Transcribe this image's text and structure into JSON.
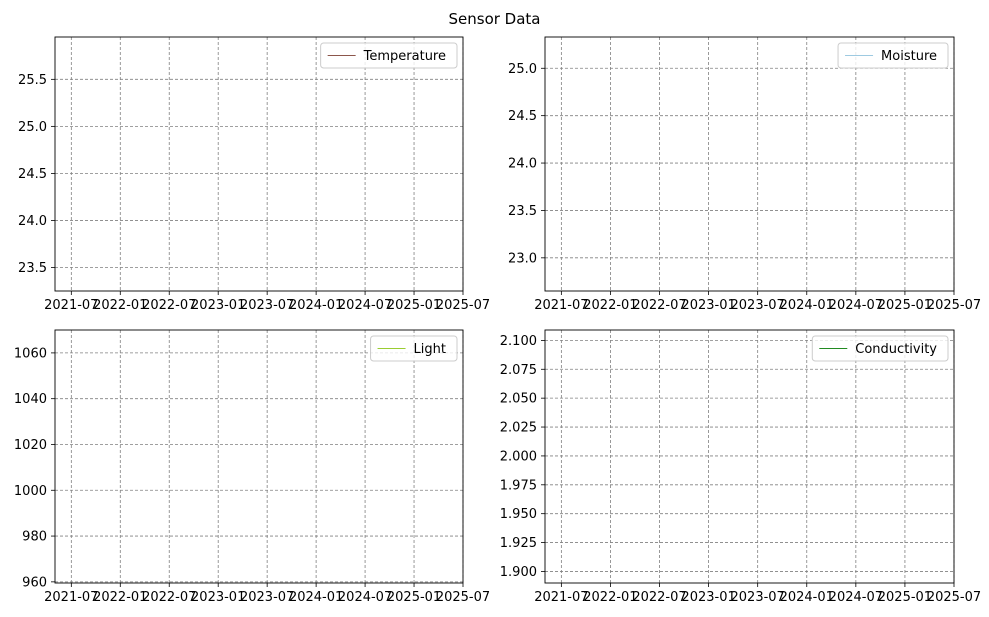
{
  "title": "Sensor Data",
  "x_tick_labels": [
    "2021-07",
    "2022-01",
    "2022-07",
    "2023-01",
    "2023-07",
    "2024-01",
    "2024-07",
    "2025-01",
    "2025-07"
  ],
  "chart_data": [
    {
      "type": "line",
      "series": [
        {
          "name": "Temperature",
          "color": "#8c564b",
          "values": []
        }
      ],
      "yticks": [
        "23.5",
        "24.0",
        "24.5",
        "25.0",
        "25.5"
      ],
      "ylim": [
        23.25,
        25.95
      ],
      "xlim": [
        "2021-05",
        "2025-07"
      ],
      "grid": true,
      "legend": "top-right"
    },
    {
      "type": "line",
      "series": [
        {
          "name": "Moisture",
          "color": "#9ecae1",
          "values": []
        }
      ],
      "yticks": [
        "23.0",
        "23.5",
        "24.0",
        "24.5",
        "25.0"
      ],
      "ylim": [
        22.65,
        25.33
      ],
      "xlim": [
        "2021-05",
        "2025-07"
      ],
      "grid": true,
      "legend": "top-right"
    },
    {
      "type": "line",
      "series": [
        {
          "name": "Light",
          "color": "#9acd32",
          "values": []
        }
      ],
      "yticks": [
        "960",
        "980",
        "1000",
        "1020",
        "1040",
        "1060"
      ],
      "ylim": [
        959.5,
        1070
      ],
      "xlim": [
        "2021-05",
        "2025-07"
      ],
      "grid": true,
      "legend": "top-right"
    },
    {
      "type": "line",
      "series": [
        {
          "name": "Conductivity",
          "color": "#228b22",
          "values": []
        }
      ],
      "yticks": [
        "1.900",
        "1.925",
        "1.950",
        "1.975",
        "2.000",
        "2.025",
        "2.050",
        "2.075",
        "2.100"
      ],
      "ylim": [
        1.89,
        2.109
      ],
      "xlim": [
        "2021-05",
        "2025-07"
      ],
      "grid": true,
      "legend": "top-right"
    }
  ]
}
